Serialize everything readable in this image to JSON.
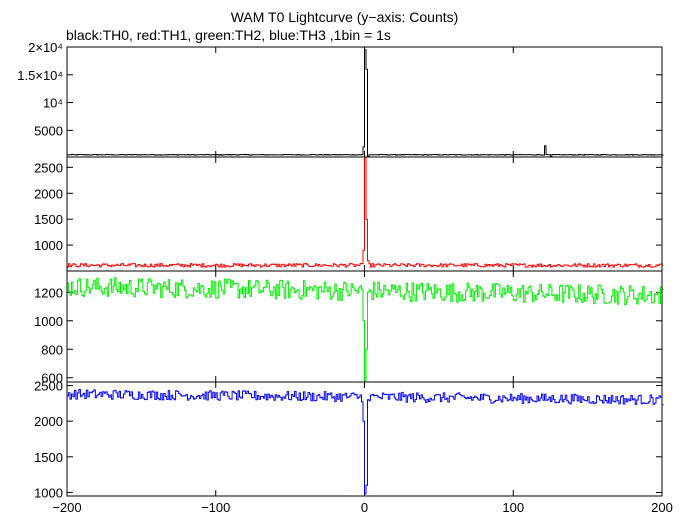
{
  "title": "WAM T0 Lightcurve (y−axis: Counts)",
  "subtitle": "black:TH0, red:TH1, green:TH2, blue:TH3 ,1bin = 1s",
  "chart_data": [
    {
      "type": "line",
      "series": [
        {
          "name": "TH0",
          "color": "#000000",
          "baseline": 600,
          "noise": 60,
          "features": [
            [
              -1,
              2000
            ],
            [
              0,
              19500
            ],
            [
              1,
              16000
            ],
            [
              2,
              300
            ],
            [
              121,
              2200
            ],
            [
              125,
              300
            ]
          ]
        }
      ],
      "xlim": [
        -200,
        200
      ],
      "ylim": [
        200,
        20000
      ],
      "yticks": [
        5000,
        10000,
        15000,
        20000
      ],
      "ytick_labels": [
        "5000",
        "10⁴",
        "1.5×10⁴",
        "2×10⁴"
      ]
    },
    {
      "type": "line",
      "series": [
        {
          "name": "TH1",
          "color": "#ff0000",
          "baseline": 610,
          "noise": 35,
          "features": [
            [
              -1,
              900
            ],
            [
              0,
              2700
            ],
            [
              1,
              1500
            ],
            [
              2,
              700
            ]
          ]
        }
      ],
      "xlim": [
        -200,
        200
      ],
      "ylim": [
        500,
        2700
      ],
      "yticks": [
        1000,
        1500,
        2000,
        2500
      ],
      "ytick_labels": [
        "1000",
        "1500",
        "2000",
        "2500"
      ]
    },
    {
      "type": "line",
      "series": [
        {
          "name": "TH2",
          "color": "#00ee00",
          "baseline_start": 1240,
          "baseline_end": 1180,
          "noise": 70,
          "features": [
            [
              -1,
              1000
            ],
            [
              0,
              580
            ],
            [
              1,
              800
            ],
            [
              2,
              1200
            ]
          ]
        }
      ],
      "xlim": [
        -200,
        200
      ],
      "ylim": [
        570,
        1350
      ],
      "yticks": [
        600,
        800,
        1000,
        1200
      ],
      "ytick_labels": [
        "600",
        "800",
        "1000",
        "1200"
      ]
    },
    {
      "type": "line",
      "series": [
        {
          "name": "TH3",
          "color": "#0000ff",
          "baseline_start": 2380,
          "baseline_end": 2300,
          "noise": 70,
          "features": [
            [
              -1,
              2000
            ],
            [
              0,
              980
            ],
            [
              1,
              1100
            ],
            [
              2,
              2300
            ]
          ]
        }
      ],
      "xlim": [
        -200,
        200
      ],
      "ylim": [
        950,
        2550
      ],
      "yticks": [
        1000,
        1500,
        2000,
        2500
      ],
      "ytick_labels": [
        "1000",
        "1500",
        "2000",
        "2500"
      ],
      "xticks": [
        -200,
        -100,
        0,
        100,
        200
      ],
      "xtick_labels": [
        "−200",
        "−100",
        "0",
        "100",
        "200"
      ]
    }
  ]
}
